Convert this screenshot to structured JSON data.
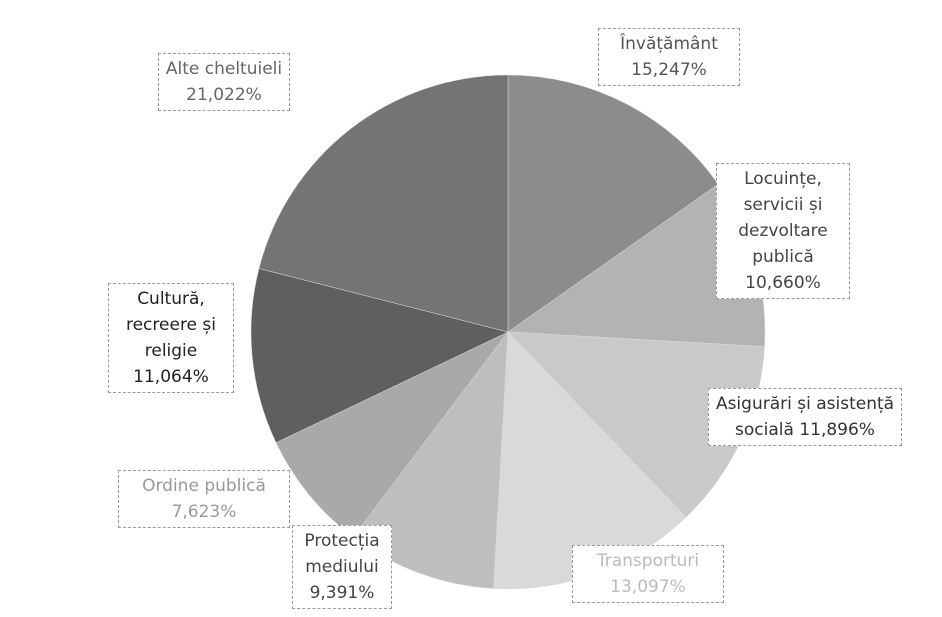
{
  "chart_data": {
    "type": "pie",
    "categories": [
      "Învățământ",
      "Locuințe, servicii și dezvoltare publică",
      "Asigurări și asistență socială",
      "Transporturi",
      "Protecția mediului",
      "Ordine publică",
      "Cultură, recreere și religie",
      "Alte cheltuieli"
    ],
    "values": [
      15.247,
      10.66,
      11.896,
      13.097,
      9.391,
      7.623,
      11.064,
      21.022
    ],
    "value_labels": [
      "15,247%",
      "10,660%",
      "11,896%",
      "13,097%",
      "9,391%",
      "7,623%",
      "11,064%",
      "21,022%"
    ],
    "colors": [
      "#8c8c8c",
      "#b3b3b3",
      "#c9c9c9",
      "#d9d9d9",
      "#bebebe",
      "#a9a9a9",
      "#5f5f5f",
      "#747474"
    ]
  }
}
